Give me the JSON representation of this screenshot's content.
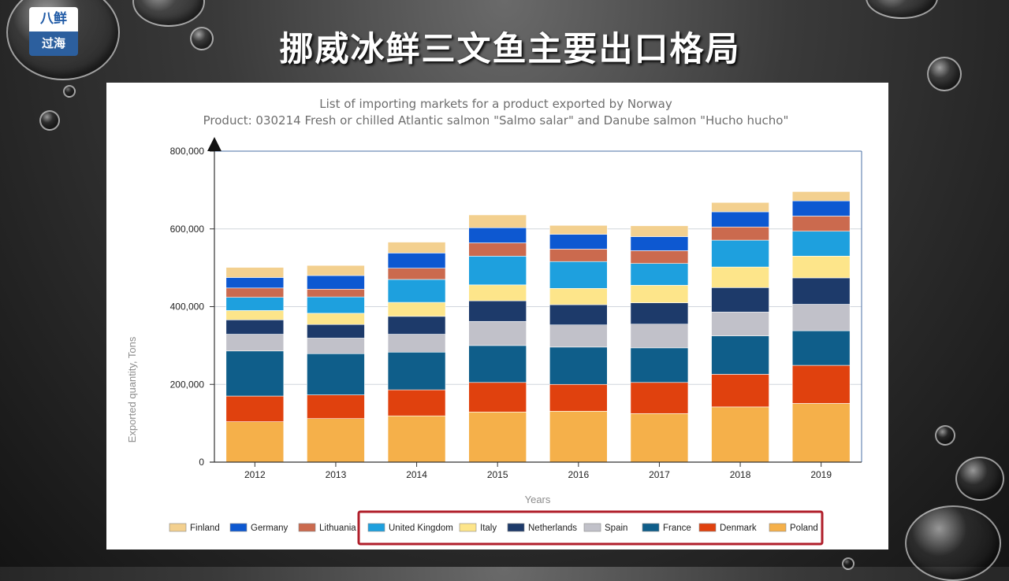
{
  "page": {
    "title": "挪威冰鲜三文鱼主要出口格局",
    "logo_top": "八鲜",
    "logo_bottom": "过海"
  },
  "chart_data": {
    "type": "bar",
    "stacked": true,
    "title": "List of importing markets for a product exported by Norway",
    "subtitle": "Product: 030214 Fresh or chilled Atlantic salmon \"Salmo salar\" and Danube salmon \"Hucho hucho\"",
    "xlabel": "Years",
    "ylabel": "Exported quantity, Tons",
    "ylim": [
      0,
      800000
    ],
    "yticks": [
      0,
      200000,
      400000,
      600000,
      800000
    ],
    "ytick_labels": [
      "0",
      "200,000",
      "400,000",
      "600,000",
      "800,000"
    ],
    "categories": [
      "2012",
      "2013",
      "2014",
      "2015",
      "2016",
      "2017",
      "2018",
      "2019"
    ],
    "legend_position": "bottom",
    "highlighted_series": [
      "United Kingdom",
      "Italy",
      "Netherlands",
      "Spain",
      "France",
      "Denmark",
      "Poland"
    ],
    "series": [
      {
        "name": "Poland",
        "color": "#F5B04A",
        "values": [
          104000,
          112000,
          119000,
          129000,
          131000,
          125000,
          142000,
          151000
        ]
      },
      {
        "name": "Denmark",
        "color": "#E0410E",
        "values": [
          66000,
          61000,
          67000,
          76000,
          69000,
          80000,
          84000,
          98000
        ]
      },
      {
        "name": "France",
        "color": "#0F5E8A",
        "values": [
          116000,
          106000,
          97000,
          95000,
          96000,
          89000,
          99000,
          89000
        ]
      },
      {
        "name": "Spain",
        "color": "#C1C1C9",
        "values": [
          43000,
          40000,
          46000,
          62000,
          57000,
          61000,
          61000,
          68000
        ]
      },
      {
        "name": "Netherlands",
        "color": "#1D3A6A",
        "values": [
          37000,
          35000,
          46000,
          53000,
          52000,
          55000,
          63000,
          68000
        ]
      },
      {
        "name": "Italy",
        "color": "#FDE58A",
        "values": [
          24000,
          29000,
          36000,
          41000,
          42000,
          45000,
          53000,
          56000
        ]
      },
      {
        "name": "United Kingdom",
        "color": "#1EA0DE",
        "values": [
          34000,
          42000,
          59000,
          74000,
          69000,
          56000,
          69000,
          64000
        ]
      },
      {
        "name": "Lithuania",
        "color": "#CB6A4E",
        "values": [
          24000,
          20000,
          29000,
          34000,
          32000,
          33000,
          34000,
          39000
        ]
      },
      {
        "name": "Germany",
        "color": "#0D58D1",
        "values": [
          27000,
          35000,
          39000,
          39000,
          38000,
          36000,
          39000,
          39000
        ]
      },
      {
        "name": "Finland",
        "color": "#F3D08F",
        "values": [
          26000,
          26000,
          28000,
          33000,
          23000,
          28000,
          24000,
          24000
        ]
      }
    ],
    "legend_order": [
      "Finland",
      "Germany",
      "Lithuania",
      "United Kingdom",
      "Italy",
      "Netherlands",
      "Spain",
      "France",
      "Denmark",
      "Poland"
    ],
    "highlight_color": "#B01E2A"
  }
}
